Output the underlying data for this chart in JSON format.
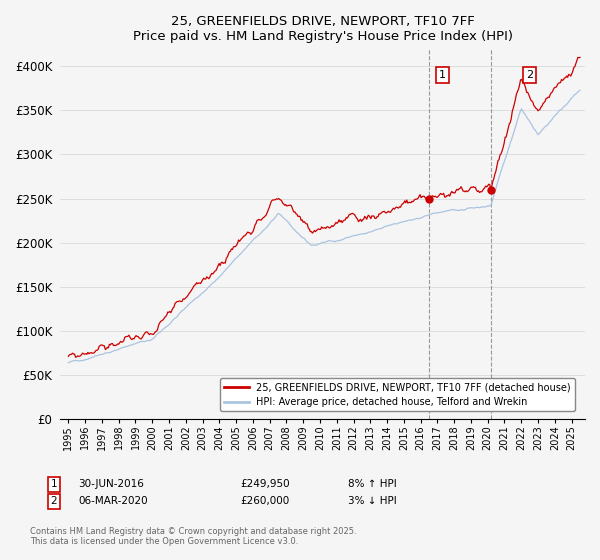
{
  "title": "25, GREENFIELDS DRIVE, NEWPORT, TF10 7FF",
  "subtitle": "Price paid vs. HM Land Registry's House Price Index (HPI)",
  "ylabel_ticks": [
    "£0",
    "£50K",
    "£100K",
    "£150K",
    "£200K",
    "£250K",
    "£300K",
    "£350K",
    "£400K"
  ],
  "ytick_values": [
    0,
    50000,
    100000,
    150000,
    200000,
    250000,
    300000,
    350000,
    400000
  ],
  "ylim": [
    0,
    420000
  ],
  "xlim_start": 1994.5,
  "xlim_end": 2025.8,
  "legend_line1": "25, GREENFIELDS DRIVE, NEWPORT, TF10 7FF (detached house)",
  "legend_line2": "HPI: Average price, detached house, Telford and Wrekin",
  "annotation1_date": "30-JUN-2016",
  "annotation1_price": "£249,950",
  "annotation1_hpi": "8% ↑ HPI",
  "annotation1_year": 2016.5,
  "annotation1_value": 249950,
  "annotation2_date": "06-MAR-2020",
  "annotation2_price": "£260,000",
  "annotation2_hpi": "3% ↓ HPI",
  "annotation2_year": 2020.17,
  "annotation2_value": 260000,
  "price_color": "#cc0000",
  "hpi_color": "#aac4e0",
  "background_color": "#f5f5f5",
  "grid_color": "#dddddd",
  "footer_text": "Contains HM Land Registry data © Crown copyright and database right 2025.\nThis data is licensed under the Open Government Licence v3.0."
}
